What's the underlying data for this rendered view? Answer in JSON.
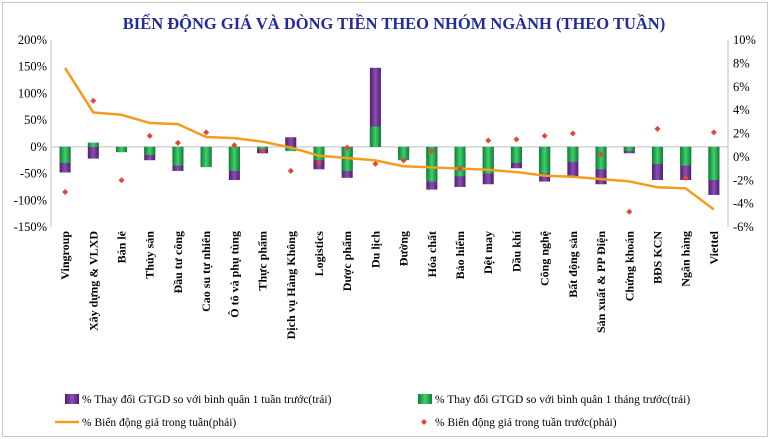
{
  "chart_data": {
    "type": "bar+line",
    "title": "BIẾN ĐỘNG GIÁ VÀ DÒNG TIỀN THEO NHÓM NGÀNH (THEO TUẦN)",
    "categories": [
      "Vingroup",
      "Xây dựng & VLXD",
      "Bán lẻ",
      "Thủy sản",
      "Đầu tư công",
      "Cao su tự nhiên",
      "Ô tô và phụ tùng",
      "Thực phẩm",
      "Dịch vụ Hàng Không",
      "Logistics",
      "Dược phẩm",
      "Du lịch",
      "Đường",
      "Hóa chất",
      "Bảo hiểm",
      "Dệt may",
      "Dầu khí",
      "Công nghệ",
      "Bất động sản",
      "Sản xuất & PP Điện",
      "Chứng khoán",
      "BĐS KCN",
      "Ngân hàng",
      "Viettel"
    ],
    "left_axis": {
      "ylim": [
        -150,
        200
      ],
      "ticks": [
        "200%",
        "150%",
        "100%",
        "50%",
        "0%",
        "-50%",
        "-100%",
        "-150%"
      ]
    },
    "right_axis": {
      "ylim": [
        -6,
        10
      ],
      "ticks": [
        "10%",
        "8%",
        "6%",
        "4%",
        "2%",
        "0%",
        "-2%",
        "-4%",
        "-6%"
      ]
    },
    "series": [
      {
        "name": "% Thay đổi GTGD so với bình quân 1 tuần trước(trái)",
        "kind": "bar",
        "axis": "left",
        "color": "#6a2c91",
        "values": [
          -48,
          -22,
          -5,
          -25,
          -45,
          -35,
          -62,
          -12,
          18,
          -42,
          -58,
          148,
          -15,
          -80,
          -75,
          -70,
          -40,
          -65,
          -55,
          -70,
          -12,
          -62,
          -62,
          -90
        ]
      },
      {
        "name": "% Thay đổi GTGD so với bình quân 1 tháng trước(trái)",
        "kind": "bar",
        "axis": "left",
        "color": "#16a84a",
        "values": [
          -30,
          8,
          -10,
          -15,
          -35,
          -38,
          -45,
          -5,
          -8,
          -25,
          -45,
          38,
          -25,
          -65,
          -55,
          -50,
          -30,
          -50,
          -28,
          -42,
          -8,
          -32,
          -35,
          -62
        ]
      },
      {
        "name": "% Biến động giá trong tuần(phải)",
        "kind": "line",
        "axis": "right",
        "color": "#f39c1e",
        "values": [
          7.6,
          3.8,
          3.6,
          2.9,
          2.8,
          1.7,
          1.6,
          1.3,
          0.8,
          0.1,
          -0.1,
          -0.3,
          -0.8,
          -0.9,
          -1.0,
          -1.1,
          -1.3,
          -1.6,
          -1.7,
          -1.9,
          -2.1,
          -2.6,
          -2.7,
          -4.5
        ]
      },
      {
        "name": "% Biến động giá trong tuần trước(phải)",
        "kind": "scatter",
        "axis": "right",
        "color": "#e0473a",
        "values": [
          -3.0,
          4.8,
          -2.0,
          1.8,
          1.2,
          2.1,
          1.0,
          0.5,
          -1.2,
          -0.5,
          0.8,
          -0.6,
          -0.3,
          0.5,
          -1.0,
          1.4,
          1.5,
          1.8,
          2.0,
          0.2,
          -4.7,
          2.4,
          -1.8,
          2.1
        ]
      }
    ]
  }
}
